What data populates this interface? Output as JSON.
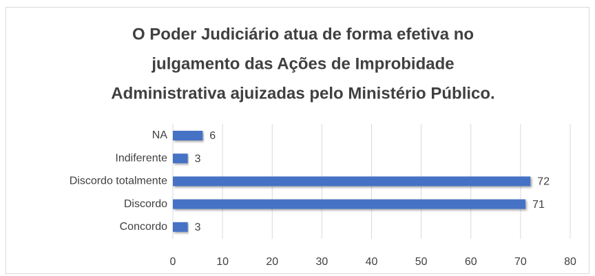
{
  "chart_data": {
    "type": "hbar",
    "title": [
      "O Poder Judiciário atua de forma efetiva no",
      "julgamento das Ações de Improbidade",
      "Administrativa ajuizadas pelo Ministério Público."
    ],
    "categories": [
      "NA",
      "Indiferente",
      "Discordo totalmente",
      "Discordo",
      "Concordo"
    ],
    "values": [
      6,
      3,
      72,
      71,
      3
    ],
    "color": "#4472c4",
    "xlim": [
      0,
      80
    ],
    "xticks": [
      0,
      10,
      20,
      30,
      40,
      50,
      60,
      70,
      80
    ],
    "grid": true
  }
}
